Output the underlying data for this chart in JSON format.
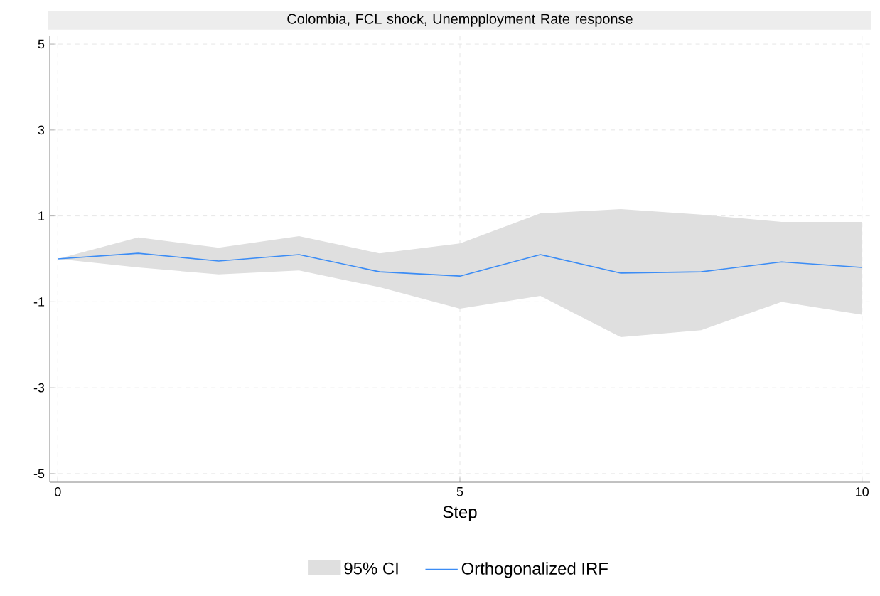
{
  "chart_data": {
    "type": "line",
    "title": "Colombia, FCL shock, Unempployment Rate response",
    "xlabel": "Step",
    "x": [
      0,
      1,
      2,
      3,
      4,
      5,
      6,
      7,
      8,
      9,
      10
    ],
    "series": [
      {
        "name": "Orthogonalized IRF",
        "color": "#3b8cf5",
        "values": [
          0,
          0.13,
          -0.05,
          0.1,
          -0.3,
          -0.4,
          0.1,
          -0.33,
          -0.3,
          -0.07,
          -0.2
        ],
        "lower": [
          0,
          -0.2,
          -0.36,
          -0.27,
          -0.66,
          -1.16,
          -0.86,
          -1.82,
          -1.66,
          -1.0,
          -1.3
        ],
        "upper": [
          0,
          0.5,
          0.26,
          0.53,
          0.13,
          0.36,
          1.06,
          1.16,
          1.03,
          0.86,
          0.86
        ]
      }
    ],
    "annotations": [
      "95% CI"
    ],
    "xlim": [
      -0.1,
      10.1
    ],
    "ylim": [
      -5.2,
      5.2
    ],
    "xticks": [
      0,
      5,
      10
    ],
    "yticks": [
      -5,
      -3,
      -1,
      1,
      3,
      5
    ],
    "grid": true,
    "legend": "bottom",
    "line_style": "solid"
  }
}
